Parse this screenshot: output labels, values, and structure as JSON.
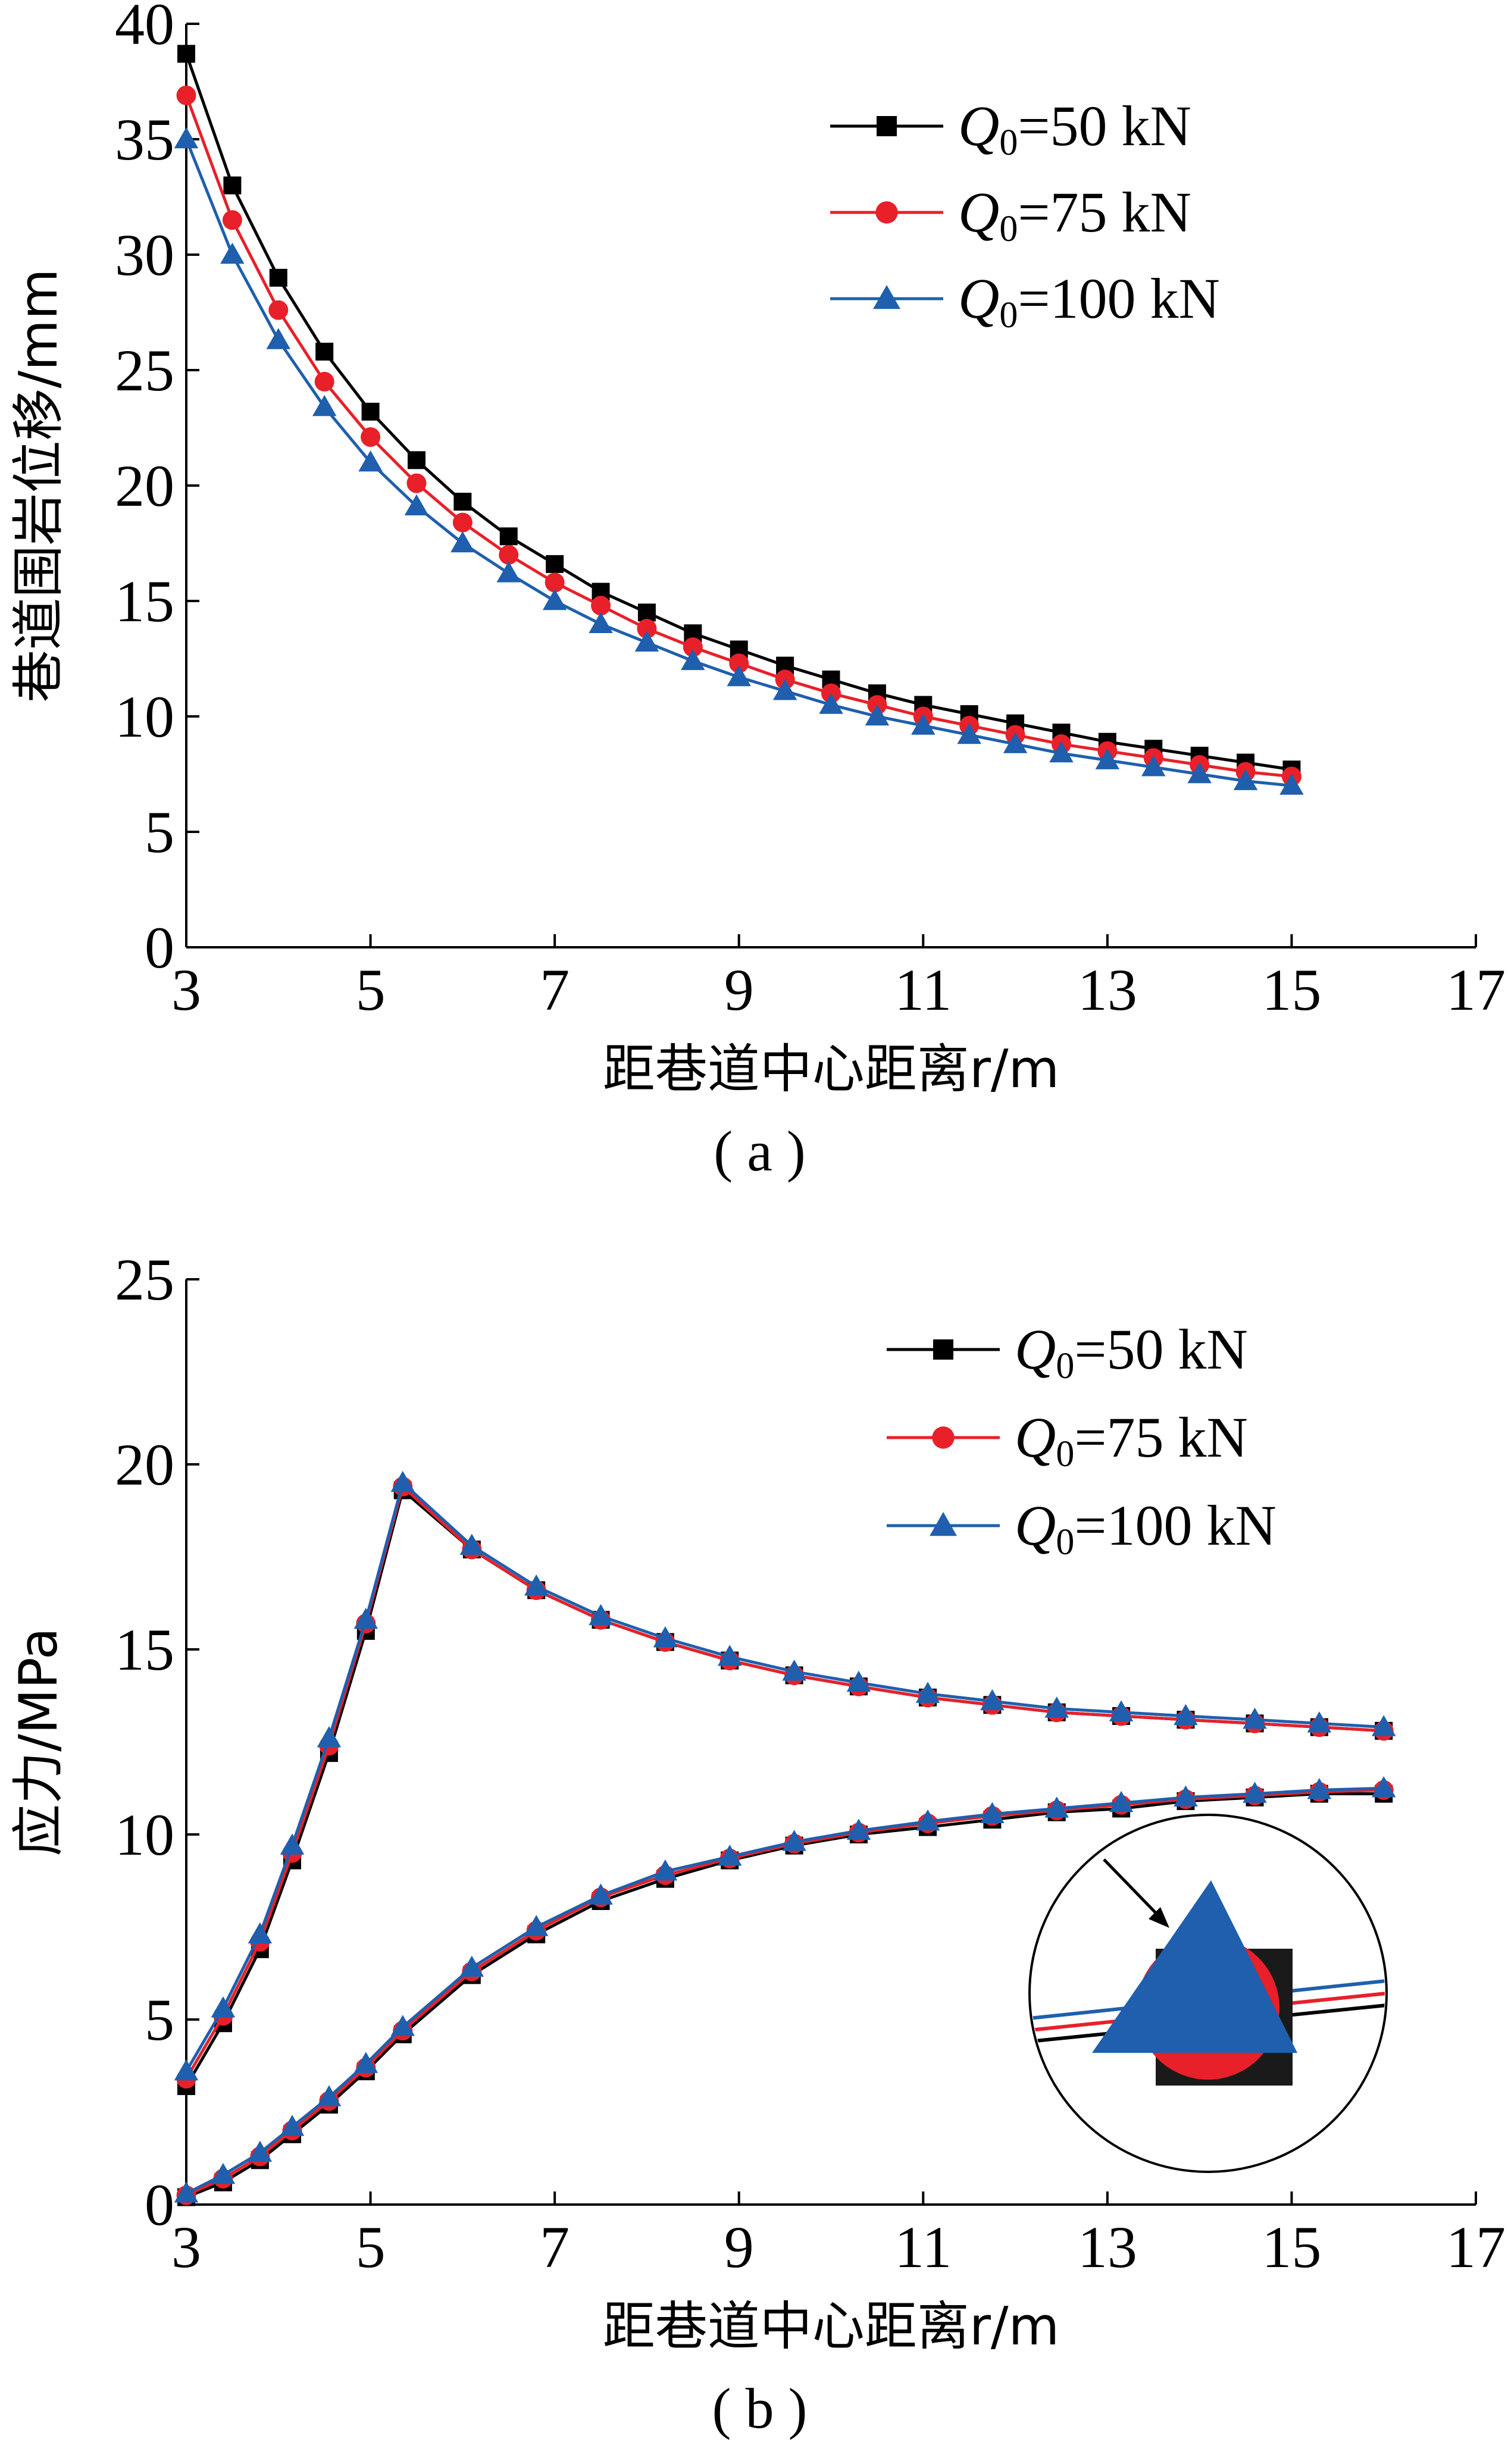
{
  "chart_data": [
    {
      "type": "line",
      "panel_label": "( a )",
      "xlabel": "距巷道中心距离r/m",
      "ylabel": "巷道围岩位移/mm",
      "xlim": [
        3,
        17
      ],
      "ylim": [
        0,
        40
      ],
      "xticks": [
        3,
        5,
        7,
        9,
        11,
        13,
        15,
        17
      ],
      "yticks": [
        0,
        5,
        10,
        15,
        20,
        25,
        30,
        35,
        40
      ],
      "legend_position": "top-right",
      "x": [
        3,
        3.5,
        4,
        4.5,
        5,
        5.5,
        6,
        6.5,
        7,
        7.5,
        8,
        8.5,
        9,
        9.5,
        10,
        10.5,
        11,
        11.5,
        12,
        12.5,
        13,
        13.5,
        14,
        14.5,
        15
      ],
      "series": [
        {
          "name": "Q0=50 kN",
          "label_sub": "0",
          "label_rest": "=50 kN",
          "color": "#000000",
          "marker": "square",
          "values": [
            38.7,
            33.0,
            29.0,
            25.8,
            23.2,
            21.1,
            19.3,
            17.8,
            16.6,
            15.4,
            14.5,
            13.6,
            12.9,
            12.2,
            11.6,
            11.0,
            10.5,
            10.1,
            9.7,
            9.3,
            8.9,
            8.6,
            8.3,
            8.0,
            7.7
          ]
        },
        {
          "name": "Q0=75 kN",
          "label_sub": "0",
          "label_rest": "=75 kN",
          "color": "#e8202a",
          "marker": "circle",
          "values": [
            36.9,
            31.5,
            27.6,
            24.5,
            22.1,
            20.1,
            18.4,
            17.0,
            15.8,
            14.8,
            13.8,
            13.0,
            12.3,
            11.6,
            11.0,
            10.5,
            10.0,
            9.6,
            9.2,
            8.8,
            8.5,
            8.2,
            7.9,
            7.6,
            7.4
          ]
        },
        {
          "name": "Q0=100 kN",
          "label_sub": "0",
          "label_rest": "=100 kN",
          "color": "#1f5fad",
          "marker": "triangle",
          "values": [
            35.0,
            30.0,
            26.3,
            23.4,
            21.0,
            19.1,
            17.5,
            16.2,
            15.0,
            14.0,
            13.2,
            12.4,
            11.7,
            11.1,
            10.5,
            10.0,
            9.6,
            9.2,
            8.8,
            8.4,
            8.1,
            7.8,
            7.5,
            7.2,
            7.0
          ]
        }
      ]
    },
    {
      "type": "line",
      "panel_label": "( b )",
      "xlabel": "距巷道中心距离r/m",
      "ylabel": "应力/MPa",
      "xlim": [
        3,
        17
      ],
      "ylim": [
        0,
        25
      ],
      "xticks": [
        3,
        5,
        7,
        9,
        11,
        13,
        15,
        17
      ],
      "yticks": [
        0,
        5,
        10,
        15,
        20,
        25
      ],
      "legend_position": "top-right",
      "series_groups": [
        {
          "x": [
            3,
            3.4,
            3.8,
            4.15,
            4.55,
            4.95,
            5.35,
            6.1,
            6.8,
            7.5,
            8.2,
            8.9,
            9.6,
            10.3,
            11.05,
            11.75,
            12.45,
            13.15,
            13.85,
            14.6,
            15.3,
            16.0
          ],
          "series": [
            {
              "name": "Q0=50 kN",
              "color": "#000000",
              "marker": "square",
              "values": [
                3.2,
                4.9,
                6.9,
                9.3,
                12.2,
                15.5,
                19.3,
                17.7,
                16.6,
                15.8,
                15.2,
                14.7,
                14.3,
                14.0,
                13.7,
                13.5,
                13.3,
                13.2,
                13.1,
                13.0,
                12.9,
                12.8
              ]
            },
            {
              "name": "Q0=75 kN",
              "color": "#e8202a",
              "marker": "circle",
              "values": [
                3.4,
                5.1,
                7.1,
                9.5,
                12.4,
                15.7,
                19.4,
                17.7,
                16.6,
                15.8,
                15.2,
                14.7,
                14.3,
                14.0,
                13.7,
                13.5,
                13.3,
                13.2,
                13.1,
                13.0,
                12.9,
                12.8
              ]
            },
            {
              "name": "Q0=100 kN",
              "color": "#1f5fad",
              "marker": "triangle",
              "values": [
                3.6,
                5.3,
                7.3,
                9.7,
                12.6,
                15.8,
                19.5,
                17.8,
                16.7,
                15.9,
                15.3,
                14.8,
                14.4,
                14.1,
                13.8,
                13.6,
                13.4,
                13.3,
                13.2,
                13.1,
                13.0,
                12.9
              ]
            }
          ]
        },
        {
          "x": [
            3,
            3.4,
            3.8,
            4.15,
            4.55,
            4.95,
            5.35,
            6.1,
            6.8,
            7.5,
            8.2,
            8.9,
            9.6,
            10.3,
            11.05,
            11.75,
            12.45,
            13.15,
            13.85,
            14.6,
            15.3,
            16.0
          ],
          "series": [
            {
              "name": "Q0=50 kN",
              "color": "#000000",
              "marker": "square",
              "values": [
                0.2,
                0.6,
                1.2,
                1.9,
                2.7,
                3.6,
                4.6,
                6.2,
                7.3,
                8.2,
                8.8,
                9.3,
                9.7,
                10.0,
                10.2,
                10.4,
                10.6,
                10.7,
                10.9,
                11.0,
                11.1,
                11.1
              ]
            },
            {
              "name": "Q0=75 kN",
              "color": "#e8202a",
              "marker": "circle",
              "values": [
                0.25,
                0.7,
                1.3,
                2.0,
                2.8,
                3.7,
                4.7,
                6.3,
                7.4,
                8.3,
                8.9,
                9.35,
                9.75,
                10.05,
                10.3,
                10.5,
                10.65,
                10.8,
                10.95,
                11.05,
                11.15,
                11.2
              ]
            },
            {
              "name": "Q0=100 kN",
              "color": "#1f5fad",
              "marker": "triangle",
              "values": [
                0.3,
                0.8,
                1.4,
                2.1,
                2.9,
                3.8,
                4.8,
                6.4,
                7.5,
                8.35,
                9.0,
                9.4,
                9.8,
                10.1,
                10.35,
                10.55,
                10.7,
                10.85,
                11.0,
                11.1,
                11.2,
                11.25
              ]
            }
          ]
        }
      ],
      "legend": [
        {
          "name": "Q0=50 kN",
          "label_sub": "0",
          "label_rest": "=50 kN",
          "color": "#000000",
          "marker": "square"
        },
        {
          "name": "Q0=75 kN",
          "label_sub": "0",
          "label_rest": "=75 kN",
          "color": "#e8202a",
          "marker": "circle"
        },
        {
          "name": "Q0=100 kN",
          "label_sub": "0",
          "label_rest": "=100 kN",
          "color": "#1f5fad",
          "marker": "triangle"
        }
      ],
      "inset": {
        "type": "zoom-detail",
        "shape": "circle"
      }
    }
  ]
}
